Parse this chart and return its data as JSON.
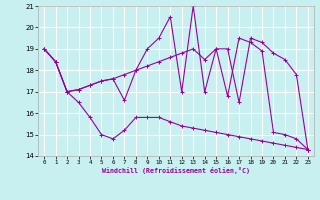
{
  "title": "",
  "xlabel": "Windchill (Refroidissement éolien,°C)",
  "bg_color": "#c8f0f0",
  "grid_color": "#ffffff",
  "line_color": "#990099",
  "xlim": [
    -0.5,
    23.5
  ],
  "ylim": [
    14,
    21
  ],
  "yticks": [
    14,
    15,
    16,
    17,
    18,
    19,
    20,
    21
  ],
  "xticks": [
    0,
    1,
    2,
    3,
    4,
    5,
    6,
    7,
    8,
    9,
    10,
    11,
    12,
    13,
    14,
    15,
    16,
    17,
    18,
    19,
    20,
    21,
    22,
    23
  ],
  "series": [
    [
      19.0,
      18.4,
      17.0,
      16.5,
      15.8,
      15.0,
      14.8,
      15.2,
      15.8,
      15.8,
      15.8,
      15.6,
      15.4,
      15.3,
      15.2,
      15.1,
      15.0,
      14.9,
      14.8,
      14.7,
      14.6,
      14.5,
      14.4,
      14.3
    ],
    [
      19.0,
      18.4,
      17.0,
      17.1,
      17.3,
      17.5,
      17.6,
      16.6,
      18.0,
      19.0,
      19.5,
      20.5,
      17.0,
      21.0,
      17.0,
      19.0,
      16.8,
      19.5,
      19.3,
      18.9,
      15.1,
      15.0,
      14.8,
      14.3
    ],
    [
      19.0,
      18.4,
      17.0,
      17.1,
      17.3,
      17.5,
      17.6,
      17.8,
      18.0,
      18.2,
      18.4,
      18.6,
      18.8,
      19.0,
      18.5,
      19.0,
      19.0,
      16.5,
      19.5,
      19.3,
      18.8,
      18.5,
      17.8,
      14.3
    ]
  ]
}
